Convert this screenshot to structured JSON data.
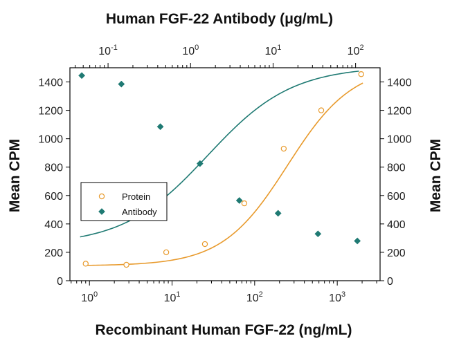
{
  "chart_data": {
    "type": "scatter",
    "title": "Human FGF-22 Antibody (μg/mL)",
    "xlabel": "Recombinant Human FGF-22 (ng/mL)",
    "ylabel": "Mean CPM",
    "ylabel_right": "Mean CPM",
    "x_scale": "log",
    "x_top_scale": "log",
    "xlim": [
      0.58,
      3300
    ],
    "x_top_lim": [
      0.0345,
      198
    ],
    "ylim": [
      0,
      1500
    ],
    "grid": false,
    "legend_position": "center-left",
    "x_ticks": [
      1,
      10,
      100,
      1000
    ],
    "x_tick_labels": [
      {
        "base": "10",
        "exp": "0"
      },
      {
        "base": "10",
        "exp": "1"
      },
      {
        "base": "10",
        "exp": "2"
      },
      {
        "base": "10",
        "exp": "3"
      }
    ],
    "x_top_ticks": [
      0.1,
      1,
      10,
      100
    ],
    "x_top_tick_labels": [
      {
        "base": "10",
        "exp": "-1"
      },
      {
        "base": "10",
        "exp": "0"
      },
      {
        "base": "10",
        "exp": "1"
      },
      {
        "base": "10",
        "exp": "2"
      }
    ],
    "y_ticks": [
      0,
      200,
      400,
      600,
      800,
      1000,
      1200,
      1400
    ],
    "y_tick_labels": [
      "0",
      "200",
      "400",
      "600",
      "800",
      "1000",
      "1200",
      "1400"
    ],
    "series": [
      {
        "name": "Protein",
        "axis": "bottom",
        "marker": "open-circle",
        "color": "#e89a2c",
        "x": [
          0.9,
          2.8,
          8.5,
          25,
          75,
          225,
          640,
          1950
        ],
        "y": [
          120,
          112,
          200,
          258,
          545,
          930,
          1200,
          1455
        ],
        "fit": {
          "bottom": 105,
          "top": 1520,
          "ec50": 250,
          "hill": 1.1
        }
      },
      {
        "name": "Antibody",
        "axis": "top",
        "marker": "filled-diamond",
        "color": "#1f7a73",
        "x": [
          0.048,
          0.145,
          0.43,
          1.3,
          3.9,
          11.5,
          35,
          105
        ],
        "y": [
          1445,
          1385,
          1085,
          825,
          565,
          475,
          330,
          280
        ],
        "fit": {
          "bottom": 250,
          "top": 1510,
          "ec50": 1.6,
          "hill": 0.85
        }
      }
    ]
  }
}
